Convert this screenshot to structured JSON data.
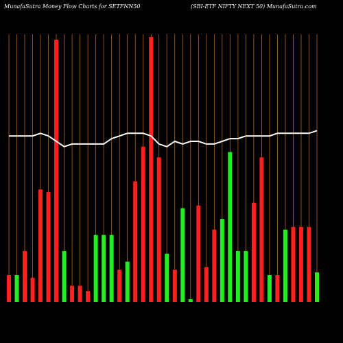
{
  "chart_data": {
    "type": "bar",
    "title": "MunafaSutra  Money Flow  Charts for SETFNN50",
    "subtitle": "(SBI-ETF NIFTY NEXT 50) MunafaSutra.com",
    "ylim": [
      0,
      100
    ],
    "grid": true,
    "grid_color": "#b5651d",
    "background": "#000000",
    "series": [
      {
        "type": "bar",
        "values": [
          10,
          10,
          19,
          9,
          42,
          41,
          98,
          19,
          6,
          6,
          4,
          25,
          25,
          25,
          12,
          15,
          45,
          58,
          99,
          54,
          18,
          12,
          35,
          1,
          36,
          13,
          27,
          31,
          56,
          19,
          19,
          37,
          54,
          10,
          10,
          27,
          28,
          28,
          28,
          11
        ],
        "colors": [
          "#ff2020",
          "#22ee22",
          "#ff2020",
          "#ff2020",
          "#ff2020",
          "#ff2020",
          "#ff2020",
          "#22ee22",
          "#ff2020",
          "#ff2020",
          "#ff2020",
          "#22ee22",
          "#22ee22",
          "#22ee22",
          "#ff2020",
          "#22ee22",
          "#ff2020",
          "#ff2020",
          "#ff2020",
          "#ff2020",
          "#22ee22",
          "#ff2020",
          "#22ee22",
          "#22ee22",
          "#ff2020",
          "#ff2020",
          "#ff2020",
          "#22ee22",
          "#22ee22",
          "#22ee22",
          "#22ee22",
          "#ff2020",
          "#ff2020",
          "#22ee22",
          "#ff2020",
          "#22ee22",
          "#ff2020",
          "#ff2020",
          "#ff2020",
          "#22ee22"
        ]
      },
      {
        "type": "line",
        "color": "#ffffff",
        "values": [
          62,
          62,
          62,
          62,
          63,
          62,
          60,
          58,
          59,
          59,
          59,
          59,
          59,
          61,
          62,
          63,
          63,
          63,
          62,
          59,
          58,
          60,
          59,
          60,
          60,
          59,
          59,
          60,
          61,
          61,
          62,
          62,
          62,
          62,
          63,
          63,
          63,
          63,
          63,
          64
        ]
      }
    ]
  }
}
